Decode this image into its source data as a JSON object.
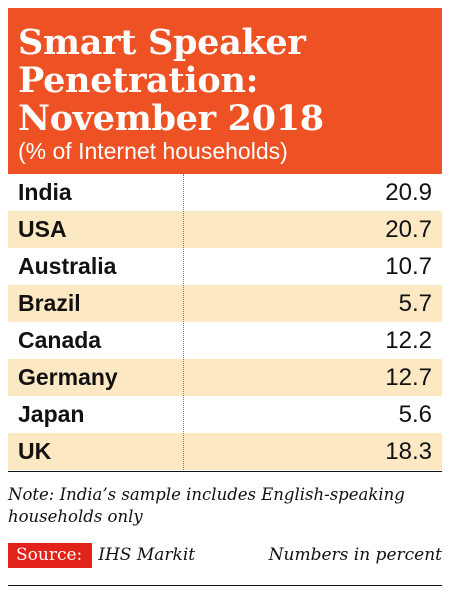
{
  "colors": {
    "header_bg": "#ee5224",
    "row_shade": "#fde8c4",
    "source_badge": "#e2231a"
  },
  "chart_data": {
    "type": "table",
    "title": "Smart Speaker\nPenetration:\nNovember 2018",
    "subtitle": "(% of Internet households)",
    "rows": [
      {
        "category": "India",
        "value": "20.9"
      },
      {
        "category": "USA",
        "value": "20.7"
      },
      {
        "category": "Australia",
        "value": "10.7"
      },
      {
        "category": "Brazil",
        "value": "5.7"
      },
      {
        "category": "Canada",
        "value": "12.2"
      },
      {
        "category": "Germany",
        "value": "12.7"
      },
      {
        "category": "Japan",
        "value": "5.6"
      },
      {
        "category": "UK",
        "value": "18.3"
      }
    ],
    "note": "Note: India’s sample includes English-speaking households only",
    "source_label": "Source:",
    "source": "IHS Markit",
    "units": "Numbers in percent"
  }
}
